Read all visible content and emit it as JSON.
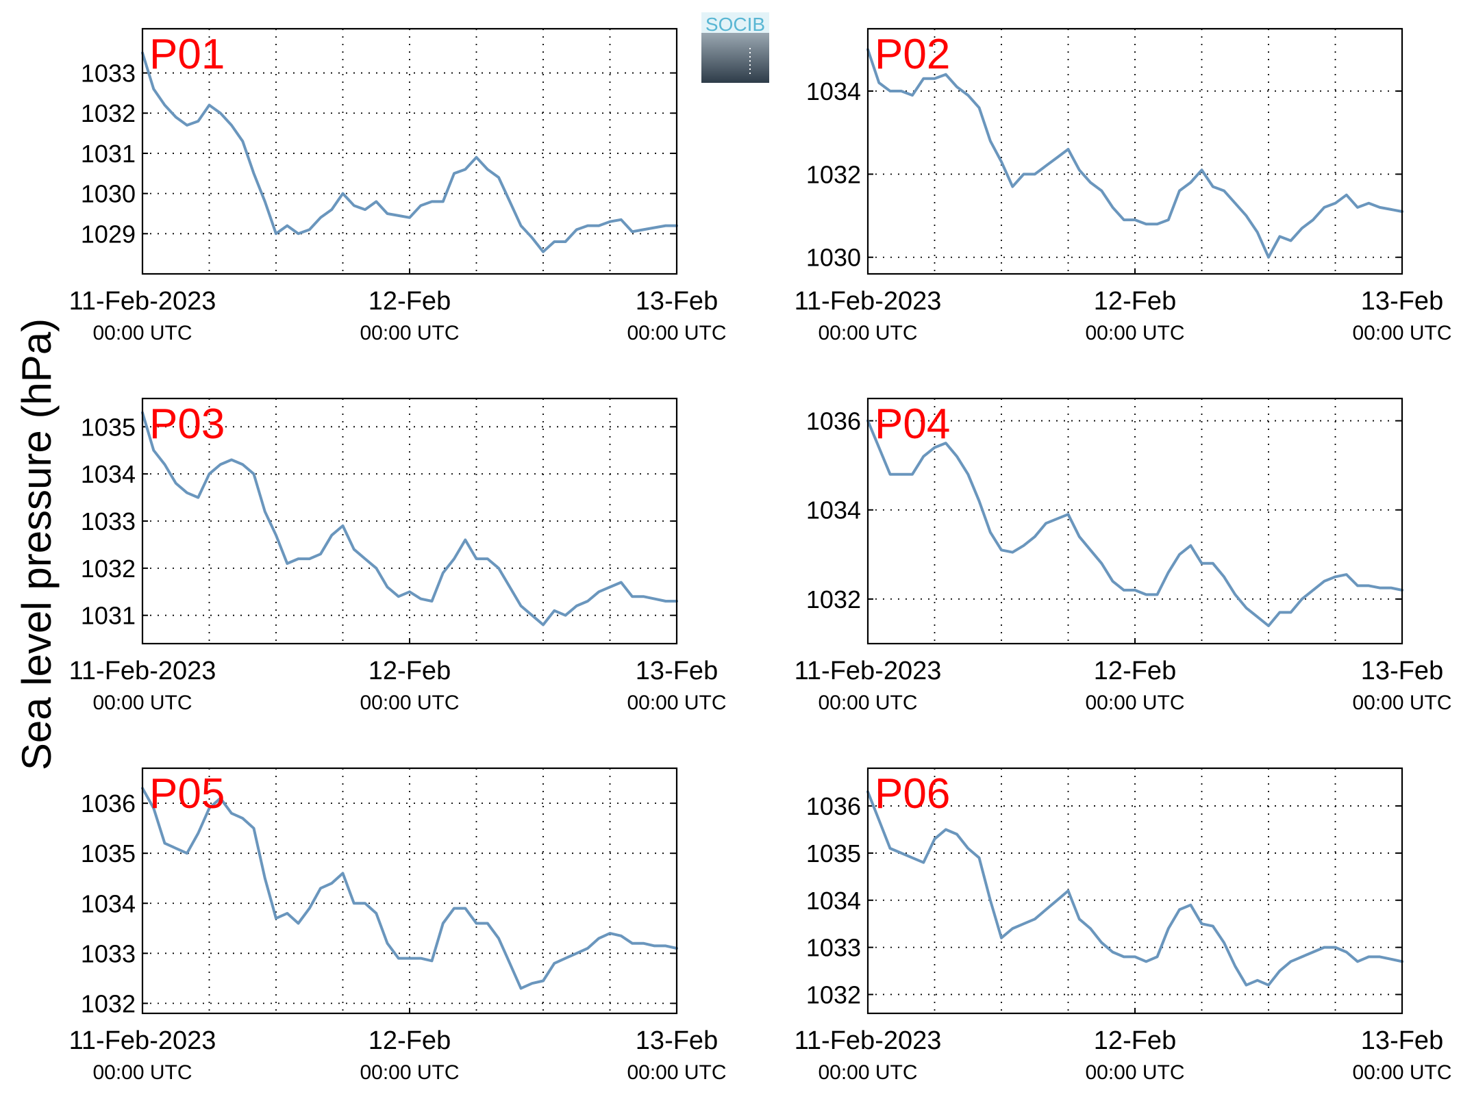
{
  "figure": {
    "ylabel": "Sea level pressure (hPa)",
    "logo_text": "SOCIB"
  },
  "colors": {
    "line": "#6a96bd",
    "panel_label": "#ff0000",
    "logo_top": "#e3f3f8",
    "logo_text": "#58b6d3",
    "logo_bottom": "#2e3c49"
  },
  "chart_data": [
    {
      "type": "line",
      "panel": "P01",
      "xlim": [
        "2023-02-11T00:00",
        "2023-02-13T00:00"
      ],
      "xticks": [
        {
          "main": "11-Feb-2023",
          "sub": "00:00 UTC"
        },
        {
          "main": "12-Feb",
          "sub": "00:00 UTC"
        },
        {
          "main": "13-Feb",
          "sub": "00:00 UTC"
        }
      ],
      "ylim": [
        1028.0,
        1034.1
      ],
      "yticks": [
        1029,
        1030,
        1031,
        1032,
        1033
      ],
      "grid": true,
      "x_hours": [
        0,
        1,
        2,
        3,
        4,
        5,
        6,
        7,
        8,
        9,
        10,
        11,
        12,
        13,
        14,
        15,
        16,
        17,
        18,
        19,
        20,
        21,
        22,
        23,
        24,
        25,
        26,
        27,
        28,
        29,
        30,
        31,
        32,
        33,
        34,
        35,
        36,
        37,
        38,
        39,
        40,
        41,
        42,
        43,
        44,
        45,
        46,
        47,
        48
      ],
      "values": [
        1033.5,
        1032.6,
        1032.2,
        1031.9,
        1031.7,
        1031.8,
        1032.2,
        1032.0,
        1031.7,
        1031.3,
        1030.5,
        1029.8,
        1029.0,
        1029.2,
        1029.0,
        1029.1,
        1029.4,
        1029.6,
        1030.0,
        1029.7,
        1029.6,
        1029.8,
        1029.5,
        1029.45,
        1029.4,
        1029.7,
        1029.8,
        1029.8,
        1030.5,
        1030.6,
        1030.9,
        1030.6,
        1030.4,
        1029.8,
        1029.2,
        1028.9,
        1028.55,
        1028.8,
        1028.8,
        1029.1,
        1029.2,
        1029.2,
        1029.3,
        1029.35,
        1029.05,
        1029.1,
        1029.15,
        1029.2,
        1029.2
      ]
    },
    {
      "type": "line",
      "panel": "P02",
      "xlim": [
        "2023-02-11T00:00",
        "2023-02-13T00:00"
      ],
      "xticks": [
        {
          "main": "11-Feb-2023",
          "sub": "00:00 UTC"
        },
        {
          "main": "12-Feb",
          "sub": "00:00 UTC"
        },
        {
          "main": "13-Feb",
          "sub": "00:00 UTC"
        }
      ],
      "ylim": [
        1029.6,
        1035.5
      ],
      "yticks": [
        1030,
        1032,
        1034
      ],
      "grid": true,
      "x_hours": [
        0,
        1,
        2,
        3,
        4,
        5,
        6,
        7,
        8,
        9,
        10,
        11,
        12,
        13,
        14,
        15,
        16,
        17,
        18,
        19,
        20,
        21,
        22,
        23,
        24,
        25,
        26,
        27,
        28,
        29,
        30,
        31,
        32,
        33,
        34,
        35,
        36,
        37,
        38,
        39,
        40,
        41,
        42,
        43,
        44,
        45,
        46,
        47,
        48
      ],
      "values": [
        1035.0,
        1034.2,
        1034.0,
        1034.0,
        1033.9,
        1034.3,
        1034.3,
        1034.4,
        1034.1,
        1033.9,
        1033.6,
        1032.8,
        1032.3,
        1031.7,
        1032.0,
        1032.0,
        1032.2,
        1032.4,
        1032.6,
        1032.1,
        1031.8,
        1031.6,
        1031.2,
        1030.9,
        1030.9,
        1030.8,
        1030.8,
        1030.9,
        1031.6,
        1031.8,
        1032.1,
        1031.7,
        1031.6,
        1031.3,
        1031.0,
        1030.6,
        1030.0,
        1030.5,
        1030.4,
        1030.7,
        1030.9,
        1031.2,
        1031.3,
        1031.5,
        1031.2,
        1031.3,
        1031.2,
        1031.15,
        1031.1
      ]
    },
    {
      "type": "line",
      "panel": "P03",
      "xlim": [
        "2023-02-11T00:00",
        "2023-02-13T00:00"
      ],
      "xticks": [
        {
          "main": "11-Feb-2023",
          "sub": "00:00 UTC"
        },
        {
          "main": "12-Feb",
          "sub": "00:00 UTC"
        },
        {
          "main": "13-Feb",
          "sub": "00:00 UTC"
        }
      ],
      "ylim": [
        1030.4,
        1035.6
      ],
      "yticks": [
        1031,
        1032,
        1033,
        1034,
        1035
      ],
      "grid": true,
      "x_hours": [
        0,
        1,
        2,
        3,
        4,
        5,
        6,
        7,
        8,
        9,
        10,
        11,
        12,
        13,
        14,
        15,
        16,
        17,
        18,
        19,
        20,
        21,
        22,
        23,
        24,
        25,
        26,
        27,
        28,
        29,
        30,
        31,
        32,
        33,
        34,
        35,
        36,
        37,
        38,
        39,
        40,
        41,
        42,
        43,
        44,
        45,
        46,
        47,
        48
      ],
      "values": [
        1035.3,
        1034.5,
        1034.2,
        1033.8,
        1033.6,
        1033.5,
        1034.0,
        1034.2,
        1034.3,
        1034.2,
        1034.0,
        1033.2,
        1032.7,
        1032.1,
        1032.2,
        1032.2,
        1032.3,
        1032.7,
        1032.9,
        1032.4,
        1032.2,
        1032.0,
        1031.6,
        1031.4,
        1031.5,
        1031.35,
        1031.3,
        1031.9,
        1032.2,
        1032.6,
        1032.2,
        1032.2,
        1032.0,
        1031.6,
        1031.2,
        1031.0,
        1030.8,
        1031.1,
        1031.0,
        1031.2,
        1031.3,
        1031.5,
        1031.6,
        1031.7,
        1031.4,
        1031.4,
        1031.35,
        1031.3,
        1031.3
      ]
    },
    {
      "type": "line",
      "panel": "P04",
      "xlim": [
        "2023-02-11T00:00",
        "2023-02-13T00:00"
      ],
      "xticks": [
        {
          "main": "11-Feb-2023",
          "sub": "00:00 UTC"
        },
        {
          "main": "12-Feb",
          "sub": "00:00 UTC"
        },
        {
          "main": "13-Feb",
          "sub": "00:00 UTC"
        }
      ],
      "ylim": [
        1031.0,
        1036.5
      ],
      "yticks": [
        1032,
        1034,
        1036
      ],
      "grid": true,
      "x_hours": [
        0,
        1,
        2,
        3,
        4,
        5,
        6,
        7,
        8,
        9,
        10,
        11,
        12,
        13,
        14,
        15,
        16,
        17,
        18,
        19,
        20,
        21,
        22,
        23,
        24,
        25,
        26,
        27,
        28,
        29,
        30,
        31,
        32,
        33,
        34,
        35,
        36,
        37,
        38,
        39,
        40,
        41,
        42,
        43,
        44,
        45,
        46,
        47,
        48
      ],
      "values": [
        1036.0,
        1035.4,
        1034.8,
        1034.8,
        1034.8,
        1035.2,
        1035.4,
        1035.5,
        1035.2,
        1034.8,
        1034.2,
        1033.5,
        1033.1,
        1033.05,
        1033.2,
        1033.4,
        1033.7,
        1033.8,
        1033.9,
        1033.4,
        1033.1,
        1032.8,
        1032.4,
        1032.2,
        1032.2,
        1032.1,
        1032.1,
        1032.6,
        1033.0,
        1033.2,
        1032.8,
        1032.8,
        1032.5,
        1032.1,
        1031.8,
        1031.6,
        1031.4,
        1031.7,
        1031.7,
        1032.0,
        1032.2,
        1032.4,
        1032.5,
        1032.55,
        1032.3,
        1032.3,
        1032.25,
        1032.25,
        1032.2
      ]
    },
    {
      "type": "line",
      "panel": "P05",
      "xlim": [
        "2023-02-11T00:00",
        "2023-02-13T00:00"
      ],
      "xticks": [
        {
          "main": "11-Feb-2023",
          "sub": "00:00 UTC"
        },
        {
          "main": "12-Feb",
          "sub": "00:00 UTC"
        },
        {
          "main": "13-Feb",
          "sub": "00:00 UTC"
        }
      ],
      "ylim": [
        1031.8,
        1036.7
      ],
      "yticks": [
        1032,
        1033,
        1034,
        1035,
        1036
      ],
      "grid": true,
      "x_hours": [
        0,
        1,
        2,
        3,
        4,
        5,
        6,
        7,
        8,
        9,
        10,
        11,
        12,
        13,
        14,
        15,
        16,
        17,
        18,
        19,
        20,
        21,
        22,
        23,
        24,
        25,
        26,
        27,
        28,
        29,
        30,
        31,
        32,
        33,
        34,
        35,
        36,
        37,
        38,
        39,
        40,
        41,
        42,
        43,
        44,
        45,
        46,
        47,
        48
      ],
      "values": [
        1036.3,
        1035.9,
        1035.2,
        1035.1,
        1035.0,
        1035.4,
        1035.9,
        1036.1,
        1035.8,
        1035.7,
        1035.5,
        1034.5,
        1033.7,
        1033.8,
        1033.6,
        1033.9,
        1034.3,
        1034.4,
        1034.6,
        1034.0,
        1034.0,
        1033.8,
        1033.2,
        1032.9,
        1032.9,
        1032.9,
        1032.85,
        1033.6,
        1033.9,
        1033.9,
        1033.6,
        1033.6,
        1033.3,
        1032.8,
        1032.3,
        1032.4,
        1032.45,
        1032.8,
        1032.9,
        1033.0,
        1033.1,
        1033.3,
        1033.4,
        1033.35,
        1033.2,
        1033.2,
        1033.15,
        1033.15,
        1033.1
      ]
    },
    {
      "type": "line",
      "panel": "P06",
      "xlim": [
        "2023-02-11T00:00",
        "2023-02-13T00:00"
      ],
      "xticks": [
        {
          "main": "11-Feb-2023",
          "sub": "00:00 UTC"
        },
        {
          "main": "12-Feb",
          "sub": "00:00 UTC"
        },
        {
          "main": "13-Feb",
          "sub": "00:00 UTC"
        }
      ],
      "ylim": [
        1031.6,
        1036.8
      ],
      "yticks": [
        1032,
        1033,
        1034,
        1035,
        1036
      ],
      "grid": true,
      "x_hours": [
        0,
        1,
        2,
        3,
        4,
        5,
        6,
        7,
        8,
        9,
        10,
        11,
        12,
        13,
        14,
        15,
        16,
        17,
        18,
        19,
        20,
        21,
        22,
        23,
        24,
        25,
        26,
        27,
        28,
        29,
        30,
        31,
        32,
        33,
        34,
        35,
        36,
        37,
        38,
        39,
        40,
        41,
        42,
        43,
        44,
        45,
        46,
        47,
        48
      ],
      "values": [
        1036.3,
        1035.7,
        1035.1,
        1035.0,
        1034.9,
        1034.8,
        1035.3,
        1035.5,
        1035.4,
        1035.1,
        1034.9,
        1034.0,
        1033.2,
        1033.4,
        1033.5,
        1033.6,
        1033.8,
        1034.0,
        1034.2,
        1033.6,
        1033.4,
        1033.1,
        1032.9,
        1032.8,
        1032.8,
        1032.7,
        1032.8,
        1033.4,
        1033.8,
        1033.9,
        1033.5,
        1033.45,
        1033.1,
        1032.6,
        1032.2,
        1032.3,
        1032.2,
        1032.5,
        1032.7,
        1032.8,
        1032.9,
        1033.0,
        1033.0,
        1032.9,
        1032.7,
        1032.8,
        1032.8,
        1032.75,
        1032.7
      ]
    }
  ]
}
